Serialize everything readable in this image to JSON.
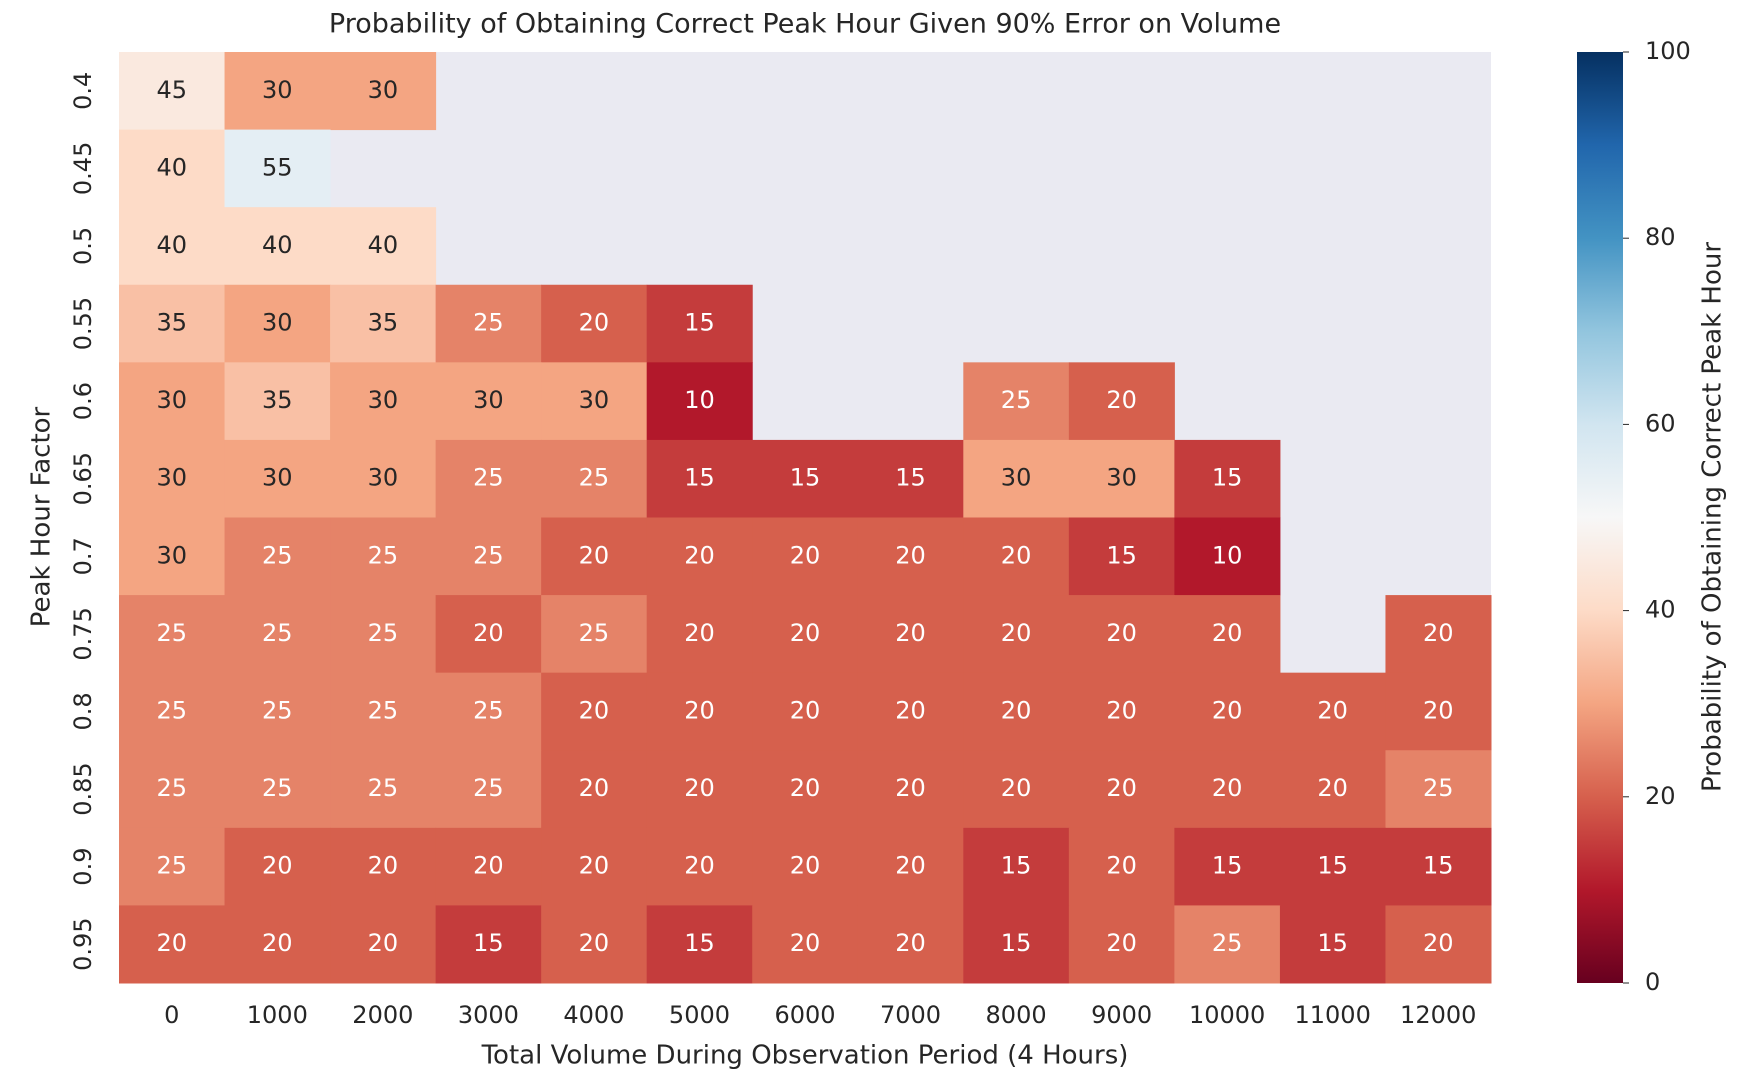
{
  "chart_data": {
    "type": "heatmap",
    "title": "Probability of Obtaining Correct Peak Hour Given 90% Error on Volume",
    "x_label": "Total Volume During Observation Period (4 Hours)",
    "y_label": "Peak Hour Factor",
    "colorbar_label": "Probability of Obtaining Correct Peak Hour",
    "categories": [
      "0",
      "1000",
      "2000",
      "3000",
      "4000",
      "5000",
      "6000",
      "7000",
      "8000",
      "9000",
      "10000",
      "11000",
      "12000"
    ],
    "y_categories": [
      "0.4",
      "0.45",
      "0.5",
      "0.55",
      "0.6",
      "0.65",
      "0.7",
      "0.75",
      "0.8",
      "0.85",
      "0.9",
      "0.95"
    ],
    "values": [
      [
        45,
        30,
        30,
        null,
        null,
        null,
        null,
        null,
        null,
        null,
        null,
        null,
        null
      ],
      [
        40,
        55,
        null,
        null,
        null,
        null,
        null,
        null,
        null,
        null,
        null,
        null,
        null
      ],
      [
        40,
        40,
        40,
        null,
        null,
        null,
        null,
        null,
        null,
        null,
        null,
        null,
        null
      ],
      [
        35,
        30,
        35,
        25,
        20,
        15,
        null,
        null,
        null,
        null,
        null,
        null,
        null
      ],
      [
        30,
        35,
        30,
        30,
        30,
        10,
        null,
        null,
        25,
        20,
        null,
        null,
        null
      ],
      [
        30,
        30,
        30,
        25,
        25,
        15,
        15,
        15,
        30,
        30,
        15,
        null,
        null
      ],
      [
        30,
        25,
        25,
        25,
        20,
        20,
        20,
        20,
        20,
        15,
        10,
        null,
        null
      ],
      [
        25,
        25,
        25,
        20,
        25,
        20,
        20,
        20,
        20,
        20,
        20,
        null,
        20
      ],
      [
        25,
        25,
        25,
        25,
        20,
        20,
        20,
        20,
        20,
        20,
        20,
        20,
        20
      ],
      [
        25,
        25,
        25,
        25,
        20,
        20,
        20,
        20,
        20,
        20,
        20,
        20,
        25
      ],
      [
        25,
        20,
        20,
        20,
        20,
        20,
        20,
        20,
        15,
        20,
        15,
        15,
        15
      ],
      [
        20,
        20,
        20,
        15,
        20,
        15,
        20,
        20,
        15,
        20,
        25,
        15,
        20
      ]
    ],
    "colormap": [
      "#67001f",
      "#b2182b",
      "#d6604d",
      "#f4a582",
      "#fddbc7",
      "#f7f7f7",
      "#d1e5f0",
      "#92c5de",
      "#4393c3",
      "#2166ac",
      "#053061"
    ],
    "background": "#eaeaf2",
    "clim": [
      0,
      100
    ],
    "cticks": [
      0,
      20,
      40,
      60,
      80,
      100
    ]
  }
}
